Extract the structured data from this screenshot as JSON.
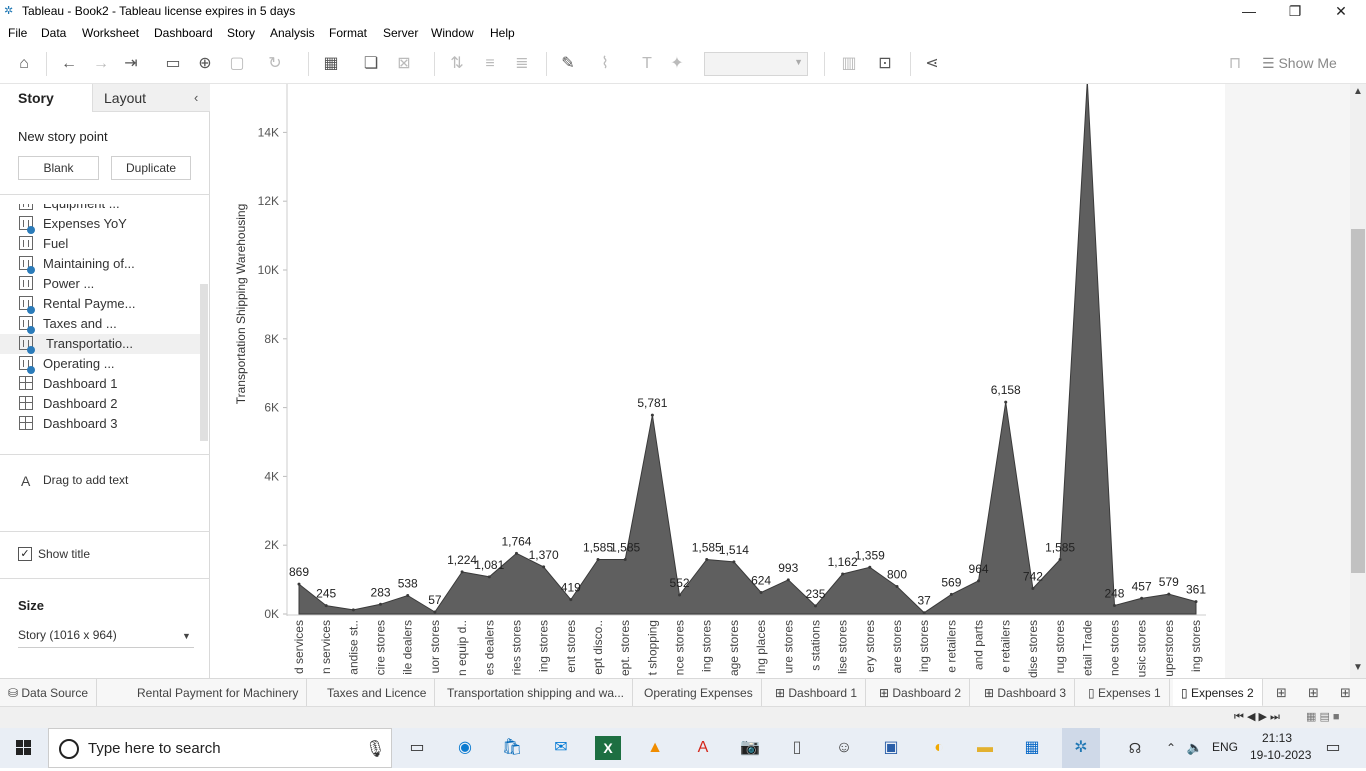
{
  "window": {
    "title": "Tableau - Book2 - Tableau license expires in 5 days"
  },
  "menu": [
    "File",
    "Data",
    "Worksheet",
    "Dashboard",
    "Story",
    "Analysis",
    "Format",
    "Server",
    "Window",
    "Help"
  ],
  "toolbar": {
    "show_me": "Show Me"
  },
  "left_panel": {
    "tab_story": "Story",
    "tab_layout": "Layout",
    "new_story_point": "New story point",
    "blank_button": "Blank",
    "duplicate_button": "Duplicate",
    "sheets": [
      {
        "label": "Equipment ...",
        "type": "sheet",
        "used": false,
        "active": false
      },
      {
        "label": "Expenses YoY",
        "type": "sheet",
        "used": true,
        "active": false
      },
      {
        "label": "Fuel",
        "type": "sheet",
        "used": false,
        "active": false
      },
      {
        "label": "Maintaining of...",
        "type": "sheet",
        "used": true,
        "active": false
      },
      {
        "label": "Power ...",
        "type": "sheet",
        "used": false,
        "active": false
      },
      {
        "label": "Rental Payme...",
        "type": "sheet",
        "used": true,
        "active": false
      },
      {
        "label": "Taxes and ...",
        "type": "sheet",
        "used": true,
        "active": false
      },
      {
        "label": "Transportatio...",
        "type": "sheet",
        "used": true,
        "active": true
      },
      {
        "label": "Operating ...",
        "type": "sheet",
        "used": true,
        "active": false
      },
      {
        "label": "Dashboard 1",
        "type": "dashboard",
        "used": false,
        "active": false
      },
      {
        "label": "Dashboard 2",
        "type": "dashboard",
        "used": false,
        "active": false
      },
      {
        "label": "Dashboard 3",
        "type": "dashboard",
        "used": false,
        "active": false
      }
    ],
    "drag_text": "Drag to add text",
    "show_title": "Show title",
    "size_label": "Size",
    "size_value": "Story (1016 x 964)"
  },
  "chart_data": {
    "type": "area",
    "ylabel": "Transportation Shipping Warehousing",
    "ylim": [
      0,
      15500
    ],
    "y_ticks": [
      "0K",
      "2K",
      "4K",
      "6K",
      "8K",
      "10K",
      "12K",
      "14K"
    ],
    "y_tick_values": [
      0,
      2000,
      4000,
      6000,
      8000,
      10000,
      12000,
      14000
    ],
    "color": "#5f5f5f",
    "categories": [
      "d services",
      "n services",
      "andise st..",
      "cire stores",
      "ile dealers",
      "uor stores",
      "n equip d..",
      "es dealers",
      "ries stores",
      "ing stores",
      "ent stores",
      "ept disco..",
      "ept. stores",
      "t shopping",
      "nce stores",
      "ing stores",
      "age stores",
      "ing places",
      "ure stores",
      "s stations",
      "lise stores",
      "ery stores",
      "are stores",
      "ing stores",
      "e retailers",
      "and parts",
      "e retailers",
      "dise stores",
      "rug stores",
      "etail Trade",
      "noe stores",
      "usic stores",
      "uperstores",
      "ing stores"
    ],
    "values": [
      869,
      245,
      120,
      283,
      538,
      57,
      1224,
      1081,
      1764,
      1370,
      419,
      1585,
      1585,
      5781,
      552,
      1585,
      1514,
      624,
      993,
      235,
      1162,
      1359,
      800,
      37,
      569,
      964,
      6158,
      742,
      1585,
      15500,
      248,
      457,
      579,
      361
    ],
    "labels": [
      "869",
      "245",
      "",
      "283",
      "538",
      "57",
      "1,224",
      "1,081",
      "1,764",
      "1,370",
      "419",
      "1,585",
      "1,585",
      "5,781",
      "552",
      "1,585",
      "1,514",
      "624",
      "993",
      "235",
      "1,162",
      "1,359",
      "800",
      "37",
      "569",
      "964",
      "6,158",
      "742",
      "1,585",
      "",
      "248",
      "457",
      "579",
      "361"
    ]
  },
  "sheet_tabs": [
    {
      "label": "Data Source",
      "icon": "db"
    },
    {
      "label": "Rental Payment for  Machinery",
      "icon": ""
    },
    {
      "label": "Taxes and Licence",
      "icon": ""
    },
    {
      "label": "Transportation shipping and wa...",
      "icon": ""
    },
    {
      "label": "Operating Expenses",
      "icon": ""
    },
    {
      "label": "Dashboard 1",
      "icon": "grid"
    },
    {
      "label": "Dashboard 2",
      "icon": "grid"
    },
    {
      "label": "Dashboard 3",
      "icon": "grid"
    },
    {
      "label": "Expenses 1",
      "icon": "book"
    },
    {
      "label": "Expenses 2",
      "icon": "book",
      "active": true
    }
  ],
  "taskbar": {
    "search_placeholder": "Type here to search",
    "lang": "ENG",
    "time": "21:13",
    "date": "19-10-2023"
  }
}
